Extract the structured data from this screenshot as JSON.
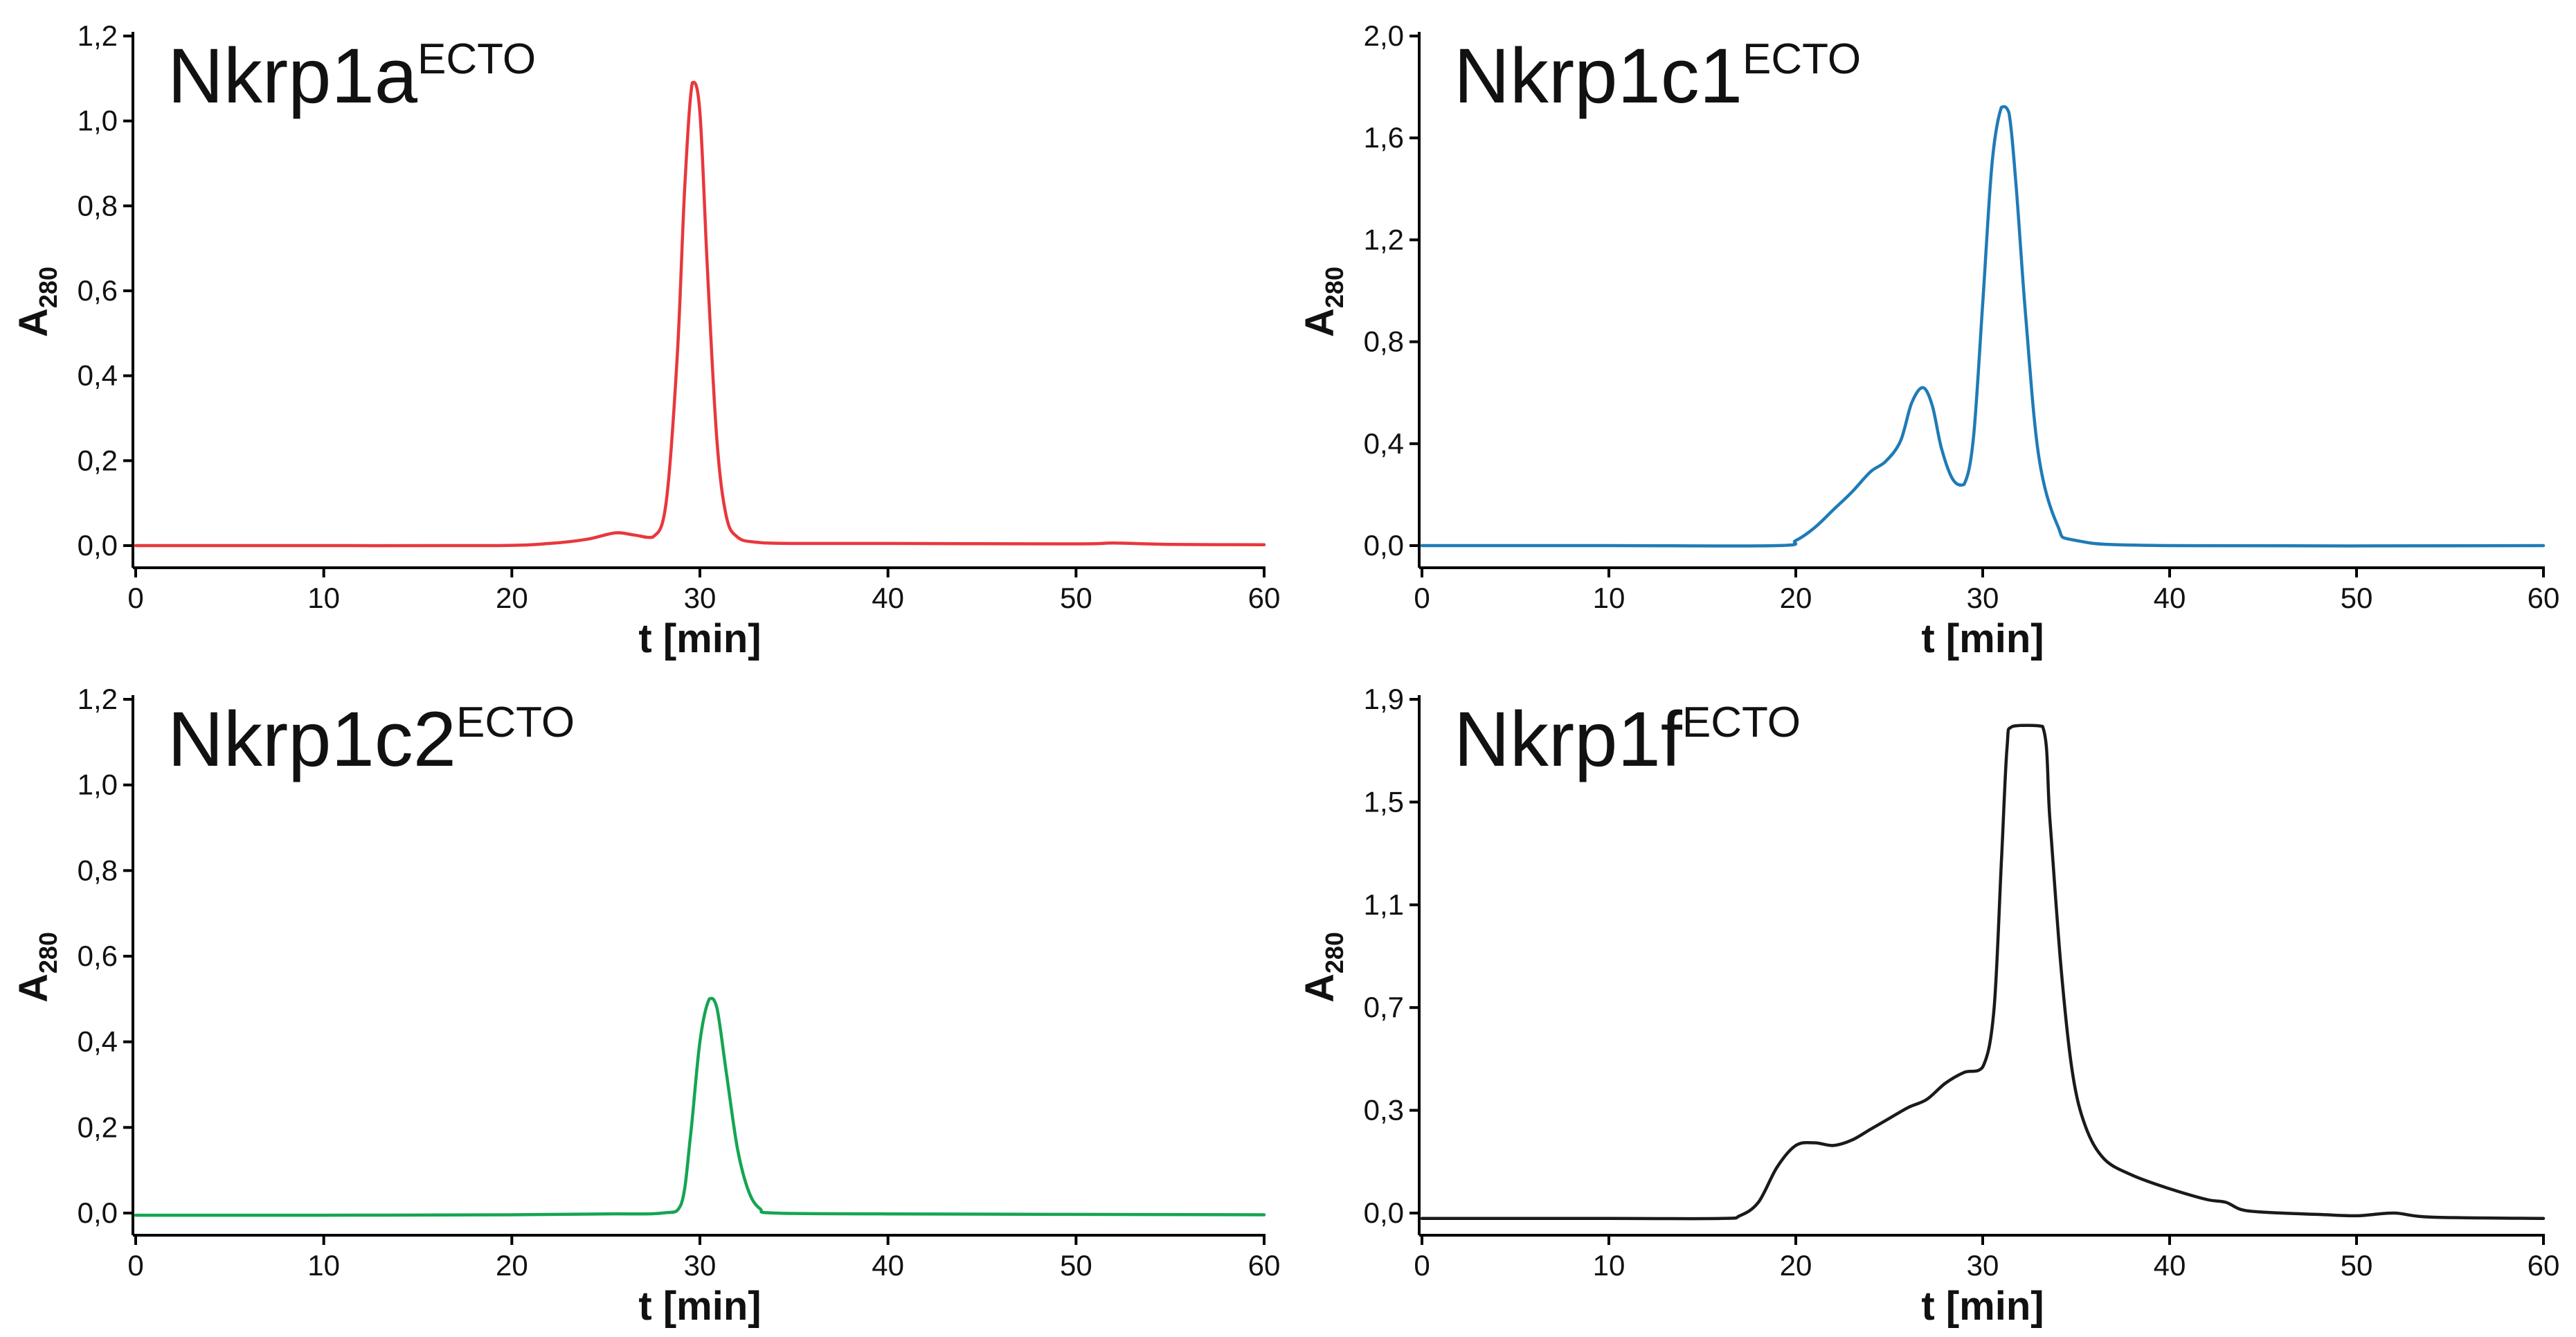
{
  "chart_data": [
    {
      "type": "line",
      "title": "Nkrp1a",
      "title_sup": "ECTO",
      "xlabel": "t [min]",
      "ylabel": "A",
      "ylabel_sub": "280",
      "xlim": [
        0,
        60
      ],
      "ylim": [
        0,
        1.2
      ],
      "xticks": [
        "0",
        "10",
        "20",
        "30",
        "40",
        "50",
        "60"
      ],
      "yticks": [
        "0,0",
        "0,2",
        "0,4",
        "0,6",
        "0,8",
        "1,0",
        "1,2"
      ],
      "color": "#e8383d",
      "series": [
        {
          "name": "Nkrp1a ECTO",
          "x": [
            0,
            10,
            19,
            22,
            24,
            25.5,
            26.5,
            27.5,
            28.2,
            28.8,
            29.2,
            29.6,
            30.0,
            30.4,
            30.9,
            31.4,
            32,
            33,
            35,
            40,
            50,
            52,
            55,
            60
          ],
          "y": [
            0.0,
            0.0,
            0.0,
            0.005,
            0.015,
            0.03,
            0.025,
            0.02,
            0.1,
            0.45,
            0.85,
            1.09,
            1.02,
            0.65,
            0.25,
            0.07,
            0.02,
            0.008,
            0.005,
            0.005,
            0.004,
            0.006,
            0.003,
            0.002
          ]
        }
      ]
    },
    {
      "type": "line",
      "title": "Nkrp1c1",
      "title_sup": "ECTO",
      "xlabel": "t [min]",
      "ylabel": "A",
      "ylabel_sub": "280",
      "xlim": [
        0,
        60
      ],
      "ylim": [
        0,
        2.0
      ],
      "xticks": [
        "0",
        "10",
        "20",
        "30",
        "40",
        "50",
        "60"
      ],
      "yticks": [
        "0,0",
        "0,4",
        "0,8",
        "1,2",
        "1,6",
        "2,0"
      ],
      "color": "#1f7bb6",
      "series": [
        {
          "name": "Nkrp1c1 ECTO",
          "x": [
            0,
            10,
            19,
            20,
            21,
            22,
            23,
            24,
            24.8,
            25.6,
            26.2,
            26.8,
            27.3,
            27.8,
            28.4,
            29.0,
            29.5,
            30.0,
            30.5,
            31.0,
            31.4,
            31.8,
            32.3,
            33,
            34,
            35,
            40,
            60
          ],
          "y": [
            0.0,
            0.0,
            0.0,
            0.02,
            0.07,
            0.14,
            0.21,
            0.29,
            0.33,
            0.41,
            0.56,
            0.62,
            0.55,
            0.38,
            0.26,
            0.24,
            0.42,
            0.95,
            1.5,
            1.72,
            1.7,
            1.4,
            0.9,
            0.35,
            0.08,
            0.02,
            0.0,
            0.0
          ]
        }
      ]
    },
    {
      "type": "line",
      "title": "Nkrp1c2",
      "title_sup": "ECTO",
      "xlabel": "t [min]",
      "ylabel": "A",
      "ylabel_sub": "280",
      "xlim": [
        0,
        60
      ],
      "ylim": [
        0,
        1.2
      ],
      "xticks": [
        "0",
        "10",
        "20",
        "30",
        "40",
        "50",
        "60"
      ],
      "yticks": [
        "0,0",
        "0,2",
        "0,4",
        "0,6",
        "0,8",
        "1,0",
        "1,2"
      ],
      "color": "#15a552",
      "series": [
        {
          "name": "Nkrp1c2 ECTO",
          "x": [
            0,
            10,
            20,
            25,
            28,
            29,
            29.5,
            30.0,
            30.5,
            30.9,
            31.4,
            32,
            32.6,
            33.2,
            34,
            40,
            60
          ],
          "y": [
            -0.005,
            -0.005,
            -0.004,
            -0.002,
            0.0,
            0.02,
            0.18,
            0.4,
            0.5,
            0.48,
            0.33,
            0.15,
            0.05,
            0.01,
            0.0,
            -0.002,
            -0.004
          ]
        }
      ]
    },
    {
      "type": "line",
      "title": "Nkrp1f",
      "title_sup": "ECTO",
      "xlabel": "t [min]",
      "ylabel": "A",
      "ylabel_sub": "280",
      "xlim": [
        0,
        60
      ],
      "ylim": [
        0,
        1.9
      ],
      "xticks": [
        "0",
        "10",
        "20",
        "30",
        "40",
        "50",
        "60"
      ],
      "yticks": [
        "0,0",
        "0,3",
        "0,7",
        "1,1",
        "1,5",
        "1,9"
      ],
      "color": "#1a1a1a",
      "series": [
        {
          "name": "Nkrp1f ECTO",
          "x": [
            0,
            10,
            16,
            17,
            18,
            19,
            20,
            21,
            22,
            23,
            24,
            25,
            26,
            27,
            28,
            29,
            30,
            30.6,
            31.0,
            31.3,
            31.6,
            33.2,
            33.6,
            34.2,
            34.8,
            35.5,
            36.5,
            38,
            40,
            42,
            43,
            44,
            46,
            48,
            50,
            52,
            54,
            60
          ],
          "y": [
            -0.02,
            -0.02,
            -0.02,
            -0.01,
            0.04,
            0.17,
            0.25,
            0.26,
            0.25,
            0.27,
            0.31,
            0.35,
            0.39,
            0.42,
            0.48,
            0.52,
            0.54,
            0.75,
            1.3,
            1.72,
            1.8,
            1.8,
            1.45,
            0.9,
            0.52,
            0.32,
            0.2,
            0.14,
            0.09,
            0.05,
            0.04,
            0.01,
            0.0,
            -0.005,
            -0.01,
            0.0,
            -0.015,
            -0.02
          ]
        }
      ]
    }
  ]
}
